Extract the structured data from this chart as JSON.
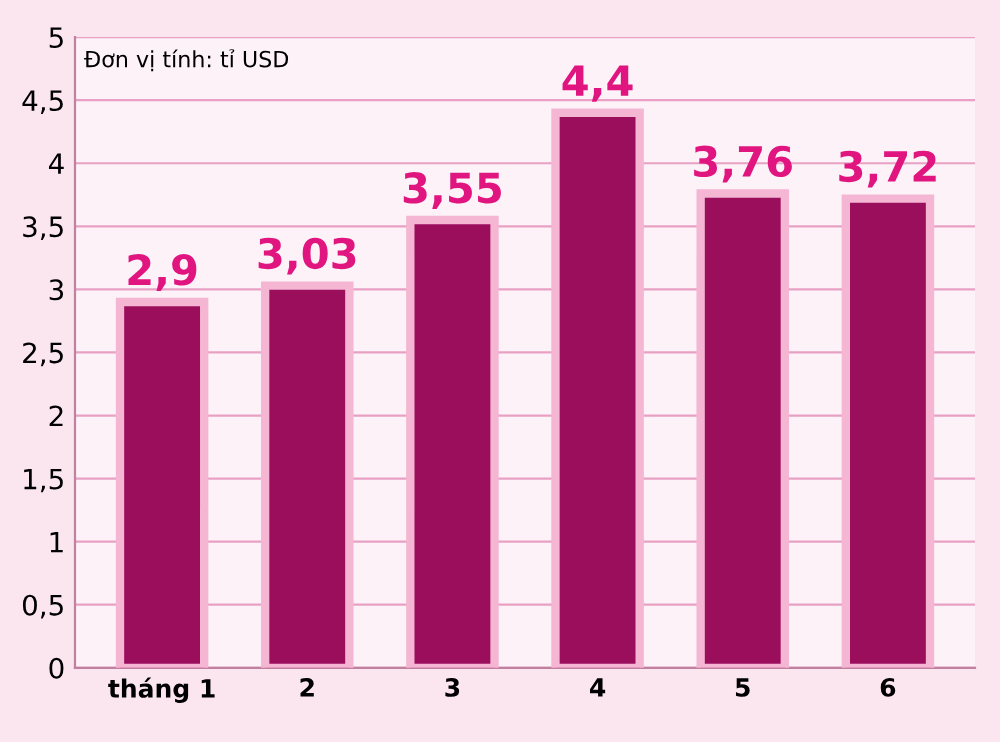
{
  "chart_data": {
    "type": "bar",
    "categories": [
      "tháng 1",
      "2",
      "3",
      "4",
      "5",
      "6"
    ],
    "values": [
      2.9,
      3.03,
      3.55,
      4.4,
      3.76,
      3.72
    ],
    "value_labels": [
      "2,9",
      "3,03",
      "3,55",
      "4,4",
      "3,76",
      "3,72"
    ],
    "color": "#9b0e5c",
    "ylim": [
      0,
      5
    ],
    "yticks": [
      0,
      {
        "value": 0.5,
        "label": "0,5"
      },
      1,
      {
        "value": 1.5,
        "label": "1,5"
      },
      2,
      {
        "value": 2.5,
        "label": "2,5"
      },
      3,
      {
        "value": 3.5,
        "label": "3,5"
      },
      4,
      {
        "value": 4.5,
        "label": "4,5"
      },
      5
    ],
    "grid": "y",
    "annotations": [
      "Đơn vị tính: tỉ USD"
    ]
  }
}
